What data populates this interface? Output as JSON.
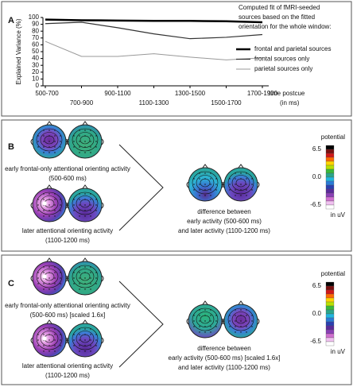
{
  "chart_data": {
    "type": "line",
    "panel_label": "A",
    "y_label": "Explained Variance (%)",
    "x_label": [
      "time postcue",
      "(in ms)"
    ],
    "categories": [
      "500-700",
      "700-900",
      "900-1100",
      "1100-1300",
      "1300-1500",
      "1500-1700",
      "1700-1900"
    ],
    "ylim": [
      0,
      100
    ],
    "yticks": [
      0,
      10,
      20,
      30,
      40,
      50,
      60,
      70,
      80,
      90,
      100
    ],
    "legend_title": [
      "Computed fit of fMRI-seeded",
      "sources based on the fitted",
      "orientation for the whole window:"
    ],
    "series": [
      {
        "name": "frontal and parietal sources",
        "color": "#000000",
        "values": [
          97,
          96,
          95.5,
          95,
          95,
          94.5,
          93
        ]
      },
      {
        "name": "frontal sources only",
        "color": "#333333",
        "values": [
          91,
          93,
          85,
          76,
          69,
          71,
          75
        ]
      },
      {
        "name": "parietal sources only",
        "color": "#999999",
        "values": [
          65,
          43,
          43,
          47,
          42,
          38,
          41
        ]
      }
    ]
  },
  "panels": [
    {
      "label": "B",
      "top": [
        "early frontal-only attentional orienting activity",
        "(500-600 ms)"
      ],
      "bottom": [
        "later attentional orienting activity",
        "(1100-1200 ms)"
      ],
      "difference": [
        "difference between",
        "early activity (500-600 ms)",
        "and later activity (1100-1200 ms)"
      ],
      "colorbar": {
        "title": "potential",
        "max": "6.5",
        "mid": "0.0",
        "min": "-6.5",
        "unit": "in uV"
      }
    },
    {
      "label": "C",
      "top": [
        "early frontal-only attentional orienting activity",
        "(500-600 ms) [scaled 1.6x]"
      ],
      "bottom": [
        "later attentional orienting activity",
        "(1100-1200 ms)"
      ],
      "difference": [
        "difference between",
        "early activity (500-600 ms) [scaled 1.6x]",
        "and later activity (1100-1200 ms)"
      ],
      "colorbar": {
        "title": "potential",
        "max": "6.5",
        "mid": "0.0",
        "min": "-6.5",
        "unit": "in uV"
      }
    }
  ]
}
